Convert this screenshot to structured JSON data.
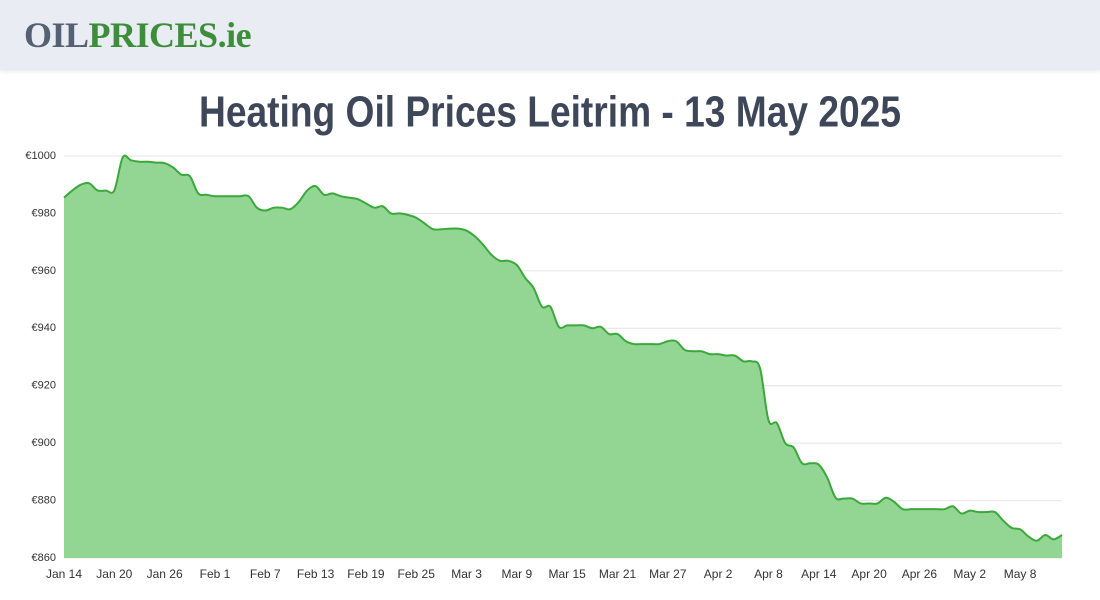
{
  "header": {
    "logo_oil": "OIL",
    "logo_prices": "PRICES",
    "logo_ie": ".ie"
  },
  "chart_data": {
    "type": "area",
    "title": "Heating Oil Prices Leitrim - 13 May 2025",
    "categories": [
      "Jan 14",
      null,
      null,
      null,
      null,
      null,
      "Jan 20",
      null,
      null,
      null,
      null,
      null,
      "Jan 26",
      null,
      null,
      null,
      null,
      null,
      "Feb 1",
      null,
      null,
      null,
      null,
      null,
      "Feb 7",
      null,
      null,
      null,
      null,
      null,
      "Feb 13",
      null,
      null,
      null,
      null,
      null,
      "Feb 19",
      null,
      null,
      null,
      null,
      null,
      "Feb 25",
      null,
      null,
      null,
      null,
      null,
      "Mar 3",
      null,
      null,
      null,
      null,
      null,
      "Mar 9",
      null,
      null,
      null,
      null,
      null,
      "Mar 15",
      null,
      null,
      null,
      null,
      null,
      "Mar 21",
      null,
      null,
      null,
      null,
      null,
      "Mar 27",
      null,
      null,
      null,
      null,
      null,
      "Apr 2",
      null,
      null,
      null,
      null,
      null,
      "Apr 8",
      null,
      null,
      null,
      null,
      null,
      "Apr 14",
      null,
      null,
      null,
      null,
      null,
      "Apr 20",
      null,
      null,
      null,
      null,
      null,
      "Apr 26",
      null,
      null,
      null,
      null,
      null,
      "May 2",
      null,
      null,
      null,
      null,
      null,
      "May 8",
      null,
      null,
      null,
      null,
      null
    ],
    "values": [
      985.5,
      988,
      990,
      990.5,
      988,
      988,
      988,
      999.5,
      998.5,
      998,
      998,
      997.7,
      997.5,
      996,
      993.5,
      993,
      987,
      986.5,
      986,
      986,
      986,
      986,
      986,
      982,
      981,
      982,
      982,
      981.5,
      984,
      988,
      989.5,
      986.5,
      987,
      986,
      985.5,
      985,
      983.5,
      982,
      982.5,
      980,
      980,
      979.5,
      978.5,
      976.5,
      974.5,
      974.5,
      974.7,
      974.7,
      974,
      972,
      969,
      965.5,
      963.5,
      963.5,
      962,
      957.5,
      954,
      947.5,
      947.5,
      940.5,
      941,
      941,
      941,
      940,
      940.5,
      938,
      938,
      935.5,
      934.5,
      934.5,
      934.5,
      934.5,
      935.5,
      935.5,
      932.5,
      932,
      932,
      931,
      931,
      930.5,
      930.5,
      928.5,
      928.5,
      926,
      908,
      907,
      900,
      898.5,
      893,
      893,
      892.5,
      888,
      881,
      880.7,
      880.7,
      879,
      879,
      879,
      881,
      879.5,
      877,
      877,
      877,
      877,
      877,
      877,
      878,
      875.5,
      876.5,
      876,
      876,
      876,
      873,
      870.5,
      870,
      867.5,
      866,
      868,
      866.5,
      868
    ],
    "color": "#3aa83a",
    "fill": "#93d693",
    "ylim": [
      860,
      1000
    ],
    "yticks": [
      {
        "value": 860,
        "label": "€860"
      },
      {
        "value": 880,
        "label": "€880"
      },
      {
        "value": 900,
        "label": "€900"
      },
      {
        "value": 920,
        "label": "€920"
      },
      {
        "value": 940,
        "label": "€940"
      },
      {
        "value": 960,
        "label": "€960"
      },
      {
        "value": 980,
        "label": "€980"
      },
      {
        "value": 1000,
        "label": "€1000"
      }
    ],
    "grid": true
  }
}
